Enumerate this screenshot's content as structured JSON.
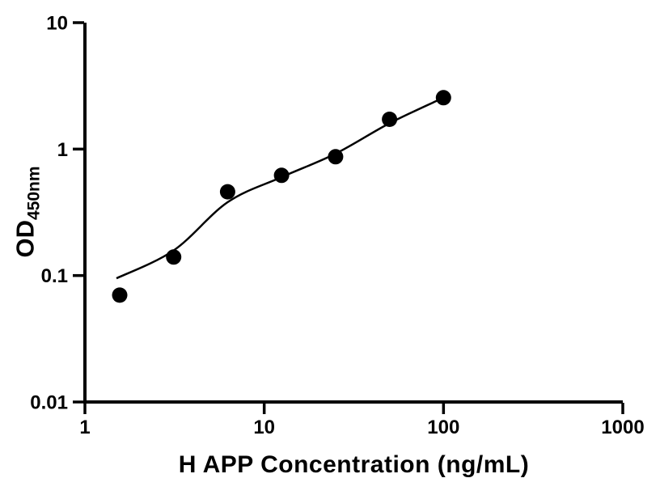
{
  "page": {
    "background": "#ffffff"
  },
  "chart_data": {
    "type": "scatter",
    "title": "",
    "xlabel": "H APP Concentration (ng/mL)",
    "ylabel": "OD",
    "ylabel_sub": "450nm",
    "x_scale": "log",
    "y_scale": "log",
    "xlim": [
      1,
      1000
    ],
    "ylim": [
      0.01,
      10
    ],
    "x_ticks": [
      1,
      10,
      100,
      1000
    ],
    "x_tick_labels": [
      "1",
      "10",
      "100",
      "1000"
    ],
    "y_ticks": [
      0.01,
      0.1,
      1,
      10
    ],
    "y_tick_labels": [
      "0.01",
      "0.1",
      "1",
      "10"
    ],
    "grid": false,
    "legend": "none",
    "colors": {
      "axis": "#000000",
      "point": "#000000",
      "curve": "#000000",
      "background": "#ffffff"
    },
    "series": [
      {
        "name": "fitted curve",
        "type": "line",
        "x": [
          1.5,
          3.125,
          6.25,
          12.5,
          25,
          50,
          100
        ],
        "y": [
          0.095,
          0.158,
          0.38,
          0.6,
          0.92,
          1.6,
          2.55
        ]
      },
      {
        "name": "H APP standard points",
        "type": "scatter",
        "x": [
          1.563,
          3.125,
          6.25,
          12.5,
          25,
          50,
          100
        ],
        "y": [
          0.07,
          0.14,
          0.46,
          0.62,
          0.87,
          1.72,
          2.55
        ]
      }
    ]
  }
}
